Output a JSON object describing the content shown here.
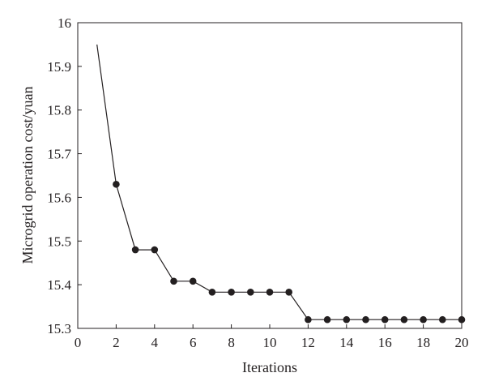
{
  "chart_data": {
    "type": "line",
    "title": "",
    "xlabel": "Iterations",
    "ylabel": "Microgrid operation cost/yuan",
    "xlim": [
      0,
      20
    ],
    "ylim": [
      15.3,
      16
    ],
    "x_ticks": [
      0,
      2,
      4,
      6,
      8,
      10,
      12,
      14,
      16,
      18,
      20
    ],
    "x_tick_labels": [
      "0",
      "2",
      "4",
      "6",
      "8",
      "10",
      "12",
      "14",
      "16",
      "18",
      "20"
    ],
    "y_ticks": [
      15.3,
      15.4,
      15.5,
      15.6,
      15.7,
      15.8,
      15.9,
      16
    ],
    "y_tick_labels": [
      "15.3",
      "15.4",
      "15.5",
      "15.6",
      "15.7",
      "15.8",
      "15.9",
      "16"
    ],
    "grid": false,
    "legend": "none",
    "line_color": "#231f20",
    "series": [
      {
        "start": {
          "x": 1,
          "y": 15.95
        },
        "points": [
          {
            "x": 2,
            "y": 15.63
          },
          {
            "x": 3,
            "y": 15.48
          },
          {
            "x": 4,
            "y": 15.48
          },
          {
            "x": 5,
            "y": 15.408
          },
          {
            "x": 6,
            "y": 15.408
          },
          {
            "x": 7,
            "y": 15.383
          },
          {
            "x": 8,
            "y": 15.383
          },
          {
            "x": 9,
            "y": 15.383
          },
          {
            "x": 10,
            "y": 15.383
          },
          {
            "x": 11,
            "y": 15.383
          },
          {
            "x": 12,
            "y": 15.32
          },
          {
            "x": 13,
            "y": 15.32
          },
          {
            "x": 14,
            "y": 15.32
          },
          {
            "x": 15,
            "y": 15.32
          },
          {
            "x": 16,
            "y": 15.32
          },
          {
            "x": 17,
            "y": 15.32
          },
          {
            "x": 18,
            "y": 15.32
          },
          {
            "x": 19,
            "y": 15.32
          },
          {
            "x": 20,
            "y": 15.32
          }
        ]
      }
    ]
  }
}
